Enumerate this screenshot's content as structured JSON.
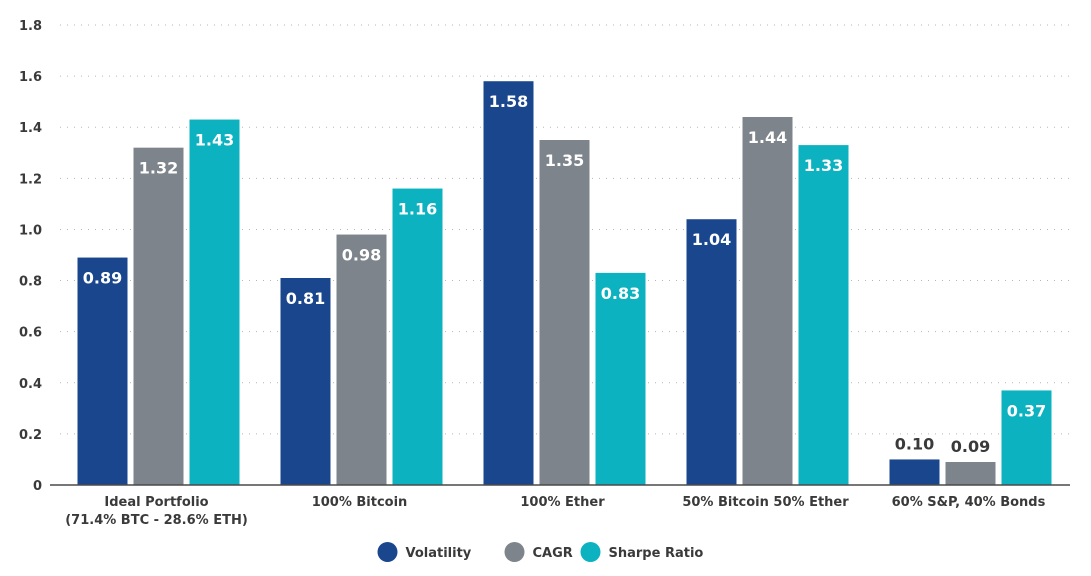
{
  "chart_data": {
    "type": "bar",
    "title": "",
    "xlabel": "",
    "ylabel": "",
    "ylim": [
      0,
      1.8
    ],
    "yticks": [
      0,
      0.2,
      0.4,
      0.6,
      0.8,
      1.0,
      1.2,
      1.4,
      1.6,
      1.8
    ],
    "ytick_labels": [
      "0",
      "0.2",
      "0.4",
      "0.6",
      "0.8",
      "1.0",
      "1.2",
      "1.4",
      "1.6",
      "1.8"
    ],
    "grid": "horizontal-dotted",
    "legend_position": "bottom-center",
    "categories": [
      [
        "Ideal Portfolio",
        "(71.4% BTC - 28.6% ETH)"
      ],
      [
        "100% Bitcoin"
      ],
      [
        "100% Ether"
      ],
      [
        "50% Bitcoin 50% Ether"
      ],
      [
        "60% S&P, 40% Bonds"
      ]
    ],
    "series": [
      {
        "name": "Volatility",
        "color": "#1a468d",
        "values": [
          0.89,
          0.81,
          1.58,
          1.04,
          0.1
        ],
        "labels": [
          "0.89",
          "0.81",
          "1.58",
          "1.04",
          "0.10"
        ]
      },
      {
        "name": "CAGR",
        "color": "#7e848b",
        "values": [
          1.32,
          0.98,
          1.35,
          1.44,
          0.09
        ],
        "labels": [
          "1.32",
          "0.98",
          "1.35",
          "1.44",
          "0.09"
        ]
      },
      {
        "name": "Sharpe Ratio",
        "color": "#0cb2bf",
        "values": [
          1.43,
          1.16,
          0.83,
          1.33,
          0.37
        ],
        "labels": [
          "1.43",
          "1.16",
          "0.83",
          "1.33",
          "0.37"
        ]
      }
    ]
  }
}
